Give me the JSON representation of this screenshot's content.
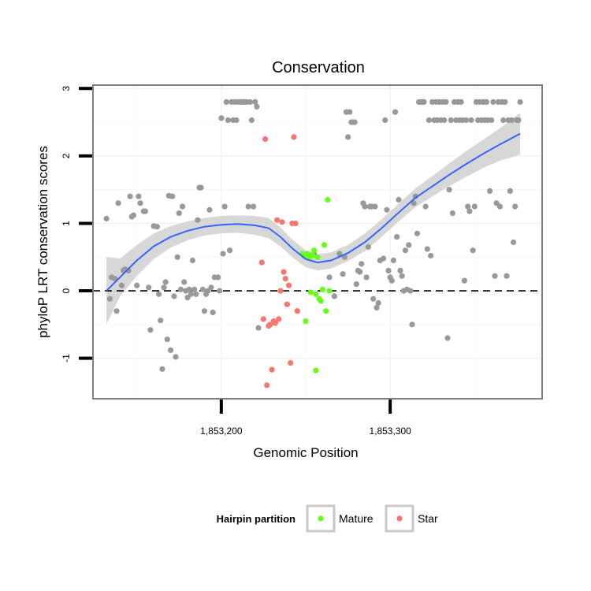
{
  "chart_data": {
    "type": "scatter",
    "title": "Conservation",
    "xlabel": "Genomic Position",
    "ylabel": "phyloP LRT conservation scores",
    "xlim": [
      1853124,
      1853390
    ],
    "ylim": [
      -1.6,
      3.05
    ],
    "x_ticks": [
      1853200,
      1853300
    ],
    "x_tick_labels": [
      "1,853,200",
      "1,853,300"
    ],
    "y_ticks": [
      -1,
      0,
      1,
      2,
      3
    ],
    "y_tick_labels": [
      "-1",
      "0",
      "1",
      "2",
      "3"
    ],
    "grid": true,
    "reference_line": {
      "y": 0,
      "style": "dashed"
    },
    "legend": {
      "position": "bottom",
      "title": "Hairpin partition",
      "entries": [
        {
          "label": "Mature",
          "color": "#66ff1a"
        },
        {
          "label": "Star",
          "color": "#f8766d"
        }
      ]
    },
    "colors": {
      "other": "#999999",
      "mature": "#66ff1a",
      "star": "#f8766d",
      "smooth": "#3366ff",
      "ribbon": "#d3d3d3"
    },
    "series": [
      {
        "group": "other",
        "points": [
          [
            1853132,
            1.07
          ],
          [
            1853134,
            -0.12
          ],
          [
            1853135,
            0.2
          ],
          [
            1853137,
            0.18
          ],
          [
            1853138,
            -0.3
          ],
          [
            1853139,
            1.3
          ],
          [
            1853141,
            0.08
          ],
          [
            1853142,
            0.3
          ],
          [
            1853143,
            0.32
          ],
          [
            1853145,
            0.3
          ],
          [
            1853146,
            1.4
          ],
          [
            1853147,
            1.1
          ],
          [
            1853148,
            1.12
          ],
          [
            1853150,
            0.08
          ],
          [
            1853151,
            1.4
          ],
          [
            1853152,
            1.3
          ],
          [
            1853154,
            1.18
          ],
          [
            1853155,
            1.18
          ],
          [
            1853157,
            0.05
          ],
          [
            1853158,
            -0.58
          ],
          [
            1853160,
            0.96
          ],
          [
            1853162,
            0.95
          ],
          [
            1853163,
            -0.05
          ],
          [
            1853164,
            -0.44
          ],
          [
            1853165,
            -1.16
          ],
          [
            1853166,
            0.05
          ],
          [
            1853167,
            0.13
          ],
          [
            1853168,
            -0.72
          ],
          [
            1853169,
            1.41
          ],
          [
            1853170,
            -0.88
          ],
          [
            1853171,
            1.4
          ],
          [
            1853172,
            -0.08
          ],
          [
            1853173,
            -0.98
          ],
          [
            1853174,
            0.5
          ],
          [
            1853175,
            1.15
          ],
          [
            1853176,
            0.02
          ],
          [
            1853177,
            1.25
          ],
          [
            1853178,
            0.13
          ],
          [
            1853179,
            0.0
          ],
          [
            1853180,
            -0.1
          ],
          [
            1853181,
            0.02
          ],
          [
            1853182,
            -0.05
          ],
          [
            1853183,
            0.45
          ],
          [
            1853184,
            0.02
          ],
          [
            1853185,
            -0.05
          ],
          [
            1853186,
            1.05
          ],
          [
            1853187,
            1.53
          ],
          [
            1853188,
            1.53
          ],
          [
            1853189,
            0.02
          ],
          [
            1853190,
            -0.3
          ],
          [
            1853191,
            -0.05
          ],
          [
            1853192,
            0.0
          ],
          [
            1853193,
            1.2
          ],
          [
            1853194,
            0.05
          ],
          [
            1853195,
            -0.32
          ],
          [
            1853196,
            0.2
          ],
          [
            1853198,
            0.2
          ],
          [
            1853199,
            0.0
          ],
          [
            1853200,
            2.56
          ],
          [
            1853201,
            0.55
          ],
          [
            1853202,
            1.25
          ],
          [
            1853203,
            2.8
          ],
          [
            1853204,
            2.53
          ],
          [
            1853205,
            0.6
          ],
          [
            1853206,
            2.8
          ],
          [
            1853207,
            2.53
          ],
          [
            1853208,
            2.8
          ],
          [
            1853209,
            2.53
          ],
          [
            1853210,
            2.8
          ],
          [
            1853211,
            2.8
          ],
          [
            1853212,
            2.8
          ],
          [
            1853213,
            2.8
          ],
          [
            1853214,
            2.8
          ],
          [
            1853215,
            2.8
          ],
          [
            1853216,
            1.25
          ],
          [
            1853217,
            2.8
          ],
          [
            1853218,
            2.53
          ],
          [
            1853219,
            1.25
          ],
          [
            1853220,
            2.8
          ],
          [
            1853221,
            2.73
          ],
          [
            1853222,
            -0.55
          ],
          [
            1853249,
            0.52
          ],
          [
            1853251,
            0.55
          ],
          [
            1853253,
            0.52
          ],
          [
            1853255,
            0.55
          ],
          [
            1853264,
            0.2
          ],
          [
            1853267,
            -0.08
          ],
          [
            1853270,
            0.55
          ],
          [
            1853272,
            0.25
          ],
          [
            1853273,
            0.5
          ],
          [
            1853274,
            2.65
          ],
          [
            1853275,
            2.28
          ],
          [
            1853276,
            2.65
          ],
          [
            1853277,
            2.5
          ],
          [
            1853278,
            2.5
          ],
          [
            1853279,
            2.5
          ],
          [
            1853280,
            0.1
          ],
          [
            1853281,
            0.3
          ],
          [
            1853282,
            0.28
          ],
          [
            1853283,
            0.4
          ],
          [
            1853284,
            1.3
          ],
          [
            1853285,
            1.25
          ],
          [
            1853286,
            0.2
          ],
          [
            1853287,
            0.65
          ],
          [
            1853288,
            1.25
          ],
          [
            1853289,
            1.25
          ],
          [
            1853290,
            -0.12
          ],
          [
            1853291,
            1.25
          ],
          [
            1853292,
            -0.25
          ],
          [
            1853293,
            -0.18
          ],
          [
            1853294,
            0.45
          ],
          [
            1853296,
            0.48
          ],
          [
            1853297,
            2.53
          ],
          [
            1853298,
            1.2
          ],
          [
            1853299,
            0.3
          ],
          [
            1853300,
            0.2
          ],
          [
            1853301,
            0.15
          ],
          [
            1853302,
            0.45
          ],
          [
            1853303,
            2.65
          ],
          [
            1853304,
            0.8
          ],
          [
            1853305,
            1.35
          ],
          [
            1853306,
            0.3
          ],
          [
            1853307,
            0.22
          ],
          [
            1853308,
            0.0
          ],
          [
            1853309,
            0.6
          ],
          [
            1853310,
            0.02
          ],
          [
            1853311,
            0.68
          ],
          [
            1853312,
            0.0
          ],
          [
            1853313,
            -0.5
          ],
          [
            1853314,
            1.3
          ],
          [
            1853315,
            1.4
          ],
          [
            1853316,
            0.85
          ],
          [
            1853317,
            2.8
          ],
          [
            1853318,
            2.8
          ],
          [
            1853319,
            2.8
          ],
          [
            1853320,
            2.8
          ],
          [
            1853321,
            1.25
          ],
          [
            1853322,
            0.62
          ],
          [
            1853323,
            2.53
          ],
          [
            1853324,
            0.52
          ],
          [
            1853325,
            2.8
          ],
          [
            1853326,
            2.53
          ],
          [
            1853327,
            2.8
          ],
          [
            1853328,
            2.53
          ],
          [
            1853329,
            2.8
          ],
          [
            1853330,
            2.53
          ],
          [
            1853331,
            2.8
          ],
          [
            1853332,
            2.53
          ],
          [
            1853333,
            2.8
          ],
          [
            1853334,
            -0.7
          ],
          [
            1853335,
            1.5
          ],
          [
            1853336,
            2.53
          ],
          [
            1853337,
            1.15
          ],
          [
            1853338,
            2.8
          ],
          [
            1853339,
            2.53
          ],
          [
            1853340,
            2.8
          ],
          [
            1853341,
            2.53
          ],
          [
            1853342,
            2.8
          ],
          [
            1853343,
            2.53
          ],
          [
            1853344,
            0.15
          ],
          [
            1853345,
            2.53
          ],
          [
            1853346,
            1.25
          ],
          [
            1853347,
            1.18
          ],
          [
            1853348,
            2.53
          ],
          [
            1853349,
            0.6
          ],
          [
            1853350,
            1.25
          ],
          [
            1853351,
            2.8
          ],
          [
            1853352,
            2.53
          ],
          [
            1853353,
            2.8
          ],
          [
            1853354,
            2.53
          ],
          [
            1853355,
            2.8
          ],
          [
            1853356,
            2.53
          ],
          [
            1853357,
            2.8
          ],
          [
            1853358,
            2.53
          ],
          [
            1853359,
            1.48
          ],
          [
            1853360,
            2.53
          ],
          [
            1853361,
            2.8
          ],
          [
            1853362,
            0.22
          ],
          [
            1853363,
            1.3
          ],
          [
            1853364,
            2.8
          ],
          [
            1853365,
            1.25
          ],
          [
            1853366,
            2.8
          ],
          [
            1853367,
            2.53
          ],
          [
            1853368,
            2.8
          ],
          [
            1853369,
            0.22
          ],
          [
            1853370,
            2.53
          ],
          [
            1853371,
            1.48
          ],
          [
            1853372,
            2.53
          ],
          [
            1853373,
            0.72
          ],
          [
            1853374,
            1.25
          ],
          [
            1853375,
            2.53
          ],
          [
            1853376,
            2.53
          ],
          [
            1853377,
            2.8
          ]
        ]
      },
      {
        "group": "mature",
        "name": "Mature",
        "points": [
          [
            1853248,
            0.55
          ],
          [
            1853249,
            0.52
          ],
          [
            1853250,
            -0.45
          ],
          [
            1853251,
            0.55
          ],
          [
            1853252,
            0.5
          ],
          [
            1853253,
            -0.02
          ],
          [
            1853254,
            0.52
          ],
          [
            1853255,
            0.6
          ],
          [
            1853256,
            -1.18
          ],
          [
            1853256,
            -0.05
          ],
          [
            1853257,
            0.5
          ],
          [
            1853258,
            -0.12
          ],
          [
            1853259,
            -0.15
          ],
          [
            1853260,
            0.02
          ],
          [
            1853261,
            0.68
          ],
          [
            1853262,
            -0.3
          ],
          [
            1853263,
            1.35
          ],
          [
            1853264,
            0.0
          ]
        ]
      },
      {
        "group": "star",
        "name": "Star",
        "points": [
          [
            1853224,
            0.42
          ],
          [
            1853225,
            -0.42
          ],
          [
            1853226,
            2.25
          ],
          [
            1853227,
            -1.4
          ],
          [
            1853228,
            -0.52
          ],
          [
            1853229,
            -0.5
          ],
          [
            1853230,
            -1.17
          ],
          [
            1853231,
            -0.45
          ],
          [
            1853232,
            -0.48
          ],
          [
            1853233,
            1.05
          ],
          [
            1853234,
            -0.42
          ],
          [
            1853235,
            0.0
          ],
          [
            1853236,
            1.02
          ],
          [
            1853237,
            0.28
          ],
          [
            1853238,
            0.18
          ],
          [
            1853239,
            -0.2
          ],
          [
            1853240,
            0.08
          ],
          [
            1853241,
            -1.07
          ],
          [
            1853242,
            1.0
          ],
          [
            1853243,
            2.28
          ],
          [
            1853244,
            1.0
          ],
          [
            1853245,
            -0.3
          ]
        ]
      }
    ],
    "smooth": [
      [
        1853132,
        0.0
      ],
      [
        1853140,
        0.2
      ],
      [
        1853150,
        0.45
      ],
      [
        1853160,
        0.66
      ],
      [
        1853170,
        0.8
      ],
      [
        1853180,
        0.89
      ],
      [
        1853190,
        0.95
      ],
      [
        1853200,
        0.98
      ],
      [
        1853210,
        0.99
      ],
      [
        1853220,
        0.97
      ],
      [
        1853228,
        0.93
      ],
      [
        1853235,
        0.8
      ],
      [
        1853242,
        0.63
      ],
      [
        1853250,
        0.47
      ],
      [
        1853257,
        0.42
      ],
      [
        1853265,
        0.45
      ],
      [
        1853275,
        0.56
      ],
      [
        1853285,
        0.72
      ],
      [
        1853295,
        0.93
      ],
      [
        1853305,
        1.16
      ],
      [
        1853315,
        1.38
      ],
      [
        1853325,
        1.55
      ],
      [
        1853335,
        1.72
      ],
      [
        1853345,
        1.88
      ],
      [
        1853355,
        2.03
      ],
      [
        1853365,
        2.17
      ],
      [
        1853377,
        2.33
      ]
    ],
    "ribbon": [
      [
        1853132,
        -0.5,
        0.5
      ],
      [
        1853140,
        -0.08,
        0.48
      ],
      [
        1853150,
        0.22,
        0.68
      ],
      [
        1853160,
        0.47,
        0.85
      ],
      [
        1853170,
        0.64,
        0.96
      ],
      [
        1853180,
        0.75,
        1.03
      ],
      [
        1853190,
        0.82,
        1.08
      ],
      [
        1853200,
        0.85,
        1.11
      ],
      [
        1853210,
        0.86,
        1.12
      ],
      [
        1853220,
        0.83,
        1.11
      ],
      [
        1853228,
        0.78,
        1.08
      ],
      [
        1853235,
        0.66,
        0.94
      ],
      [
        1853242,
        0.5,
        0.76
      ],
      [
        1853250,
        0.35,
        0.6
      ],
      [
        1853257,
        0.3,
        0.54
      ],
      [
        1853265,
        0.33,
        0.57
      ],
      [
        1853275,
        0.44,
        0.68
      ],
      [
        1853285,
        0.59,
        0.85
      ],
      [
        1853295,
        0.8,
        1.06
      ],
      [
        1853305,
        1.03,
        1.29
      ],
      [
        1853315,
        1.24,
        1.52
      ],
      [
        1853325,
        1.4,
        1.7
      ],
      [
        1853335,
        1.55,
        1.89
      ],
      [
        1853345,
        1.69,
        2.07
      ],
      [
        1853355,
        1.82,
        2.24
      ],
      [
        1853365,
        1.93,
        2.41
      ],
      [
        1853377,
        2.02,
        2.64
      ]
    ]
  }
}
